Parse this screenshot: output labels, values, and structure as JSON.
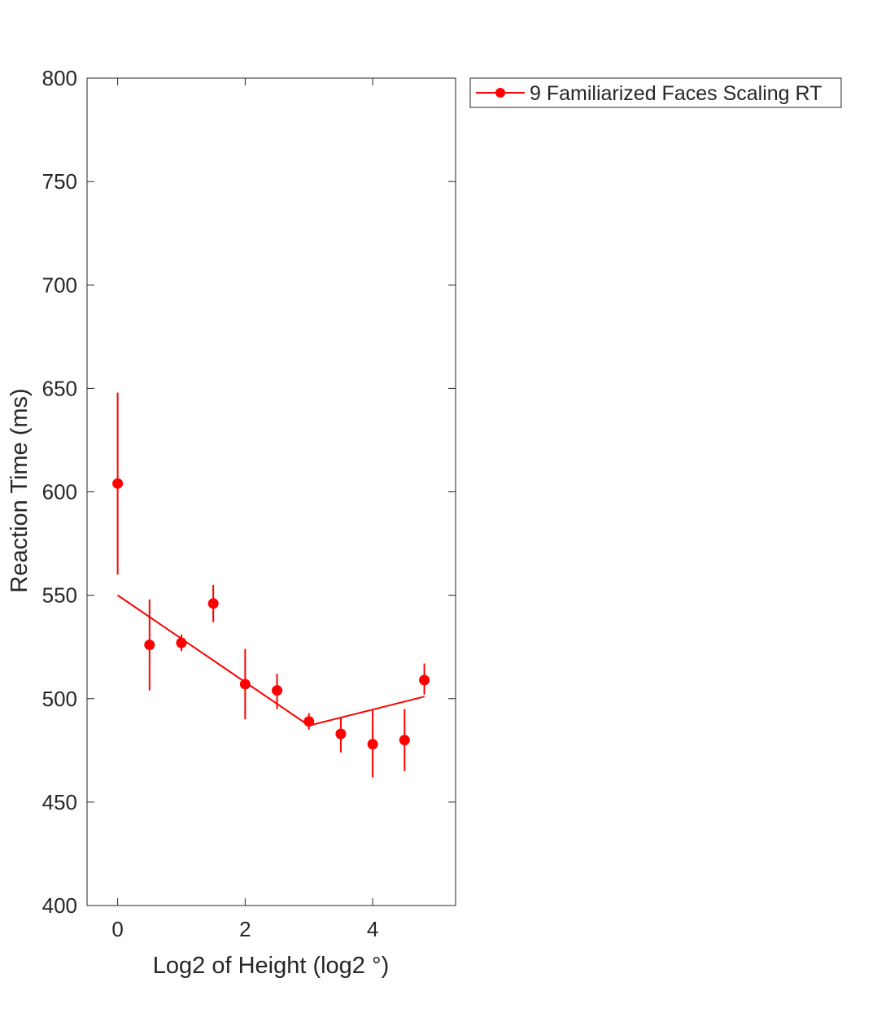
{
  "chart_data": {
    "type": "scatter",
    "xlabel": "Log2 of Height (log2 °)",
    "ylabel": "Reaction Time (ms)",
    "xlim": [
      -0.48,
      5.3
    ],
    "ylim": [
      400,
      800
    ],
    "xticks": [
      0,
      2,
      4
    ],
    "yticks": [
      400,
      450,
      500,
      550,
      600,
      650,
      700,
      750,
      800
    ],
    "grid": false,
    "legend_position": "outside-top-right",
    "series": [
      {
        "name": "9 Familiarized Faces Scaling RT",
        "color": "#ff0000",
        "marker": "filled-circle",
        "points": [
          {
            "x": 0.0,
            "y": 604,
            "err_low": 560,
            "err_high": 648
          },
          {
            "x": 0.5,
            "y": 526,
            "err_low": 504,
            "err_high": 548
          },
          {
            "x": 1.0,
            "y": 527,
            "err_low": 523,
            "err_high": 531
          },
          {
            "x": 1.5,
            "y": 546,
            "err_low": 537,
            "err_high": 555
          },
          {
            "x": 2.0,
            "y": 507,
            "err_low": 490,
            "err_high": 524
          },
          {
            "x": 2.5,
            "y": 504,
            "err_low": 495,
            "err_high": 512
          },
          {
            "x": 3.0,
            "y": 489,
            "err_low": 485,
            "err_high": 493
          },
          {
            "x": 3.5,
            "y": 483,
            "err_low": 474,
            "err_high": 491
          },
          {
            "x": 4.0,
            "y": 478,
            "err_low": 462,
            "err_high": 495
          },
          {
            "x": 4.5,
            "y": 480,
            "err_low": 465,
            "err_high": 495
          },
          {
            "x": 4.81,
            "y": 509,
            "err_low": 502,
            "err_high": 517
          }
        ],
        "fit_line": [
          {
            "x": 0.0,
            "y": 550
          },
          {
            "x": 3.0,
            "y": 487
          },
          {
            "x": 4.81,
            "y": 501
          }
        ]
      }
    ]
  }
}
